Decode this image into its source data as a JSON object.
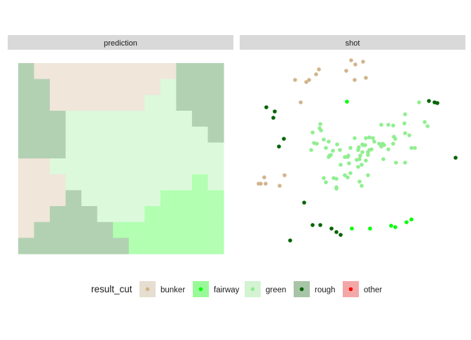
{
  "chart_data": [
    {
      "type": "heatmap",
      "panel": "prediction",
      "grid_size": [
        13,
        12
      ],
      "categories": [
        "bunker",
        "fairway",
        "green",
        "rough",
        "other"
      ],
      "grid": [
        [
          "R",
          "B",
          "B",
          "B",
          "B",
          "B",
          "B",
          "B",
          "B",
          "B",
          "R",
          "R",
          "R"
        ],
        [
          "R",
          "R",
          "B",
          "B",
          "B",
          "B",
          "B",
          "B",
          "B",
          "G",
          "R",
          "R",
          "R"
        ],
        [
          "R",
          "R",
          "B",
          "B",
          "B",
          "B",
          "B",
          "B",
          "G",
          "G",
          "R",
          "R",
          "R"
        ],
        [
          "R",
          "R",
          "R",
          "G",
          "G",
          "G",
          "G",
          "G",
          "G",
          "G",
          "G",
          "R",
          "R"
        ],
        [
          "R",
          "R",
          "R",
          "G",
          "G",
          "G",
          "G",
          "G",
          "G",
          "G",
          "G",
          "G",
          "R"
        ],
        [
          "R",
          "R",
          "R",
          "G",
          "G",
          "G",
          "G",
          "G",
          "G",
          "G",
          "G",
          "G",
          "G"
        ],
        [
          "B",
          "B",
          "G",
          "G",
          "G",
          "G",
          "G",
          "G",
          "G",
          "G",
          "G",
          "G",
          "G"
        ],
        [
          "B",
          "B",
          "B",
          "G",
          "G",
          "G",
          "G",
          "G",
          "G",
          "G",
          "G",
          "F",
          "G"
        ],
        [
          "B",
          "B",
          "B",
          "R",
          "G",
          "G",
          "G",
          "G",
          "G",
          "F",
          "F",
          "F",
          "F"
        ],
        [
          "B",
          "B",
          "R",
          "R",
          "R",
          "G",
          "G",
          "G",
          "F",
          "F",
          "F",
          "F",
          "F"
        ],
        [
          "B",
          "R",
          "R",
          "R",
          "R",
          "R",
          "F",
          "F",
          "F",
          "F",
          "F",
          "F",
          "F"
        ],
        [
          "R",
          "R",
          "R",
          "R",
          "R",
          "R",
          "R",
          "F",
          "F",
          "F",
          "F",
          "F",
          "F"
        ]
      ]
    },
    {
      "type": "scatter",
      "panel": "shot",
      "categories": [
        "bunker",
        "fairway",
        "green",
        "rough",
        "other"
      ],
      "xlim": [
        0,
        324
      ],
      "ylim": [
        0,
        275
      ],
      "series": [
        {
          "name": "bunker",
          "points": [
            [
              159,
              6
            ],
            [
              176,
              8
            ],
            [
              165,
              12
            ],
            [
              113,
              19
            ],
            [
              152,
              21
            ],
            [
              109,
              26
            ],
            [
              180,
              31
            ],
            [
              164,
              34
            ],
            [
              79,
              34
            ],
            [
              99,
              34
            ],
            [
              95,
              37
            ],
            [
              87,
              66
            ],
            [
              64,
              170
            ],
            [
              35,
              173
            ],
            [
              30,
              182
            ],
            [
              37,
              182
            ],
            [
              27,
              182
            ],
            [
              57,
              185
            ]
          ]
        },
        {
          "name": "fairway",
          "points": [
            [
              153,
              65
            ],
            [
              245,
              233
            ],
            [
              238,
              237
            ],
            [
              222,
              244
            ],
            [
              216,
              242
            ],
            [
              186,
              246
            ],
            [
              160,
              246
            ]
          ]
        },
        {
          "name": "rough",
          "points": [
            [
              270,
              64
            ],
            [
              278,
              66
            ],
            [
              282,
              67
            ],
            [
              38,
              73
            ],
            [
              50,
              79
            ],
            [
              48,
              88
            ],
            [
              63,
              118
            ],
            [
              56,
              129
            ],
            [
              308,
              145
            ],
            [
              92,
              209
            ],
            [
              104,
              241
            ],
            [
              115,
              241
            ],
            [
              131,
              246
            ],
            [
              138,
              251
            ],
            [
              144,
              255
            ],
            [
              72,
              263
            ]
          ]
        },
        {
          "name": "green",
          "points": [
            [
              256,
              66
            ],
            [
              236,
              83
            ],
            [
              264,
              94
            ],
            [
              235,
              96
            ],
            [
              115,
              97
            ],
            [
              202,
              98
            ],
            [
              212,
              98
            ],
            [
              219,
              99
            ],
            [
              268,
              100
            ],
            [
              114,
              103
            ],
            [
              116,
              106
            ],
            [
              104,
              109
            ],
            [
              236,
              110
            ],
            [
              242,
              113
            ],
            [
              220,
              115
            ],
            [
              185,
              116
            ],
            [
              164,
              117
            ],
            [
              180,
              117
            ],
            [
              190,
              117
            ],
            [
              222,
              118
            ],
            [
              120,
              119
            ],
            [
              127,
              122
            ],
            [
              192,
              122
            ],
            [
              106,
              124
            ],
            [
              110,
              125
            ],
            [
              199,
              125
            ],
            [
              204,
              125
            ],
            [
              219,
              125
            ],
            [
              139,
              126
            ],
            [
              175,
              126
            ],
            [
              176,
              127
            ],
            [
              179,
              127
            ],
            [
              206,
              127
            ],
            [
              202,
              129
            ],
            [
              170,
              130
            ],
            [
              123,
              131
            ],
            [
              158,
              131
            ],
            [
              245,
              131
            ],
            [
              250,
              131
            ],
            [
              188,
              133
            ],
            [
              212,
              133
            ],
            [
              102,
              134
            ],
            [
              143,
              134
            ],
            [
              169,
              134
            ],
            [
              185,
              134
            ],
            [
              133,
              135
            ],
            [
              175,
              137
            ],
            [
              183,
              137
            ],
            [
              130,
              141
            ],
            [
              183,
              141
            ],
            [
              128,
              142
            ],
            [
              155,
              142
            ],
            [
              172,
              142
            ],
            [
              127,
              144
            ],
            [
              150,
              144
            ],
            [
              154,
              144
            ],
            [
              171,
              147
            ],
            [
              205,
              147
            ],
            [
              167,
              148
            ],
            [
              180,
              149
            ],
            [
              223,
              152
            ],
            [
              156,
              153
            ],
            [
              236,
              152
            ],
            [
              144,
              155
            ],
            [
              174,
              155
            ],
            [
              169,
              158
            ],
            [
              158,
              167
            ],
            [
              150,
              170
            ],
            [
              183,
              170
            ],
            [
              154,
              173
            ],
            [
              120,
              174
            ],
            [
              134,
              174
            ],
            [
              138,
              175
            ],
            [
              171,
              179
            ],
            [
              123,
              180
            ],
            [
              174,
              185
            ],
            [
              138,
              187
            ],
            [
              138,
              189
            ]
          ]
        },
        {
          "name": "other",
          "points": []
        }
      ]
    }
  ],
  "panels": {
    "prediction_label": "prediction",
    "shot_label": "shot"
  },
  "legend": {
    "title": "result_cut",
    "items": [
      {
        "key": "bunker",
        "label": "bunker",
        "fill": "#E6DED0",
        "dot": "#D2B48C"
      },
      {
        "key": "fairway",
        "label": "fairway",
        "fill": "#99F999",
        "dot": "#00FF00"
      },
      {
        "key": "green",
        "label": "green",
        "fill": "#D3F3D3",
        "dot": "#90EE90"
      },
      {
        "key": "rough",
        "label": "rough",
        "fill": "#A7C4A7",
        "dot": "#006400"
      },
      {
        "key": "other",
        "label": "other",
        "fill": "#F4A7A7",
        "dot": "#FF0000"
      }
    ]
  },
  "colors": {
    "tile": {
      "B": "#F0E6DA",
      "F": "#B2FFB2",
      "G": "#DCF9DC",
      "R": "#B2D1B2"
    },
    "strip_bg": "#D9D9D9",
    "strip_text": "#1A1A1A"
  }
}
